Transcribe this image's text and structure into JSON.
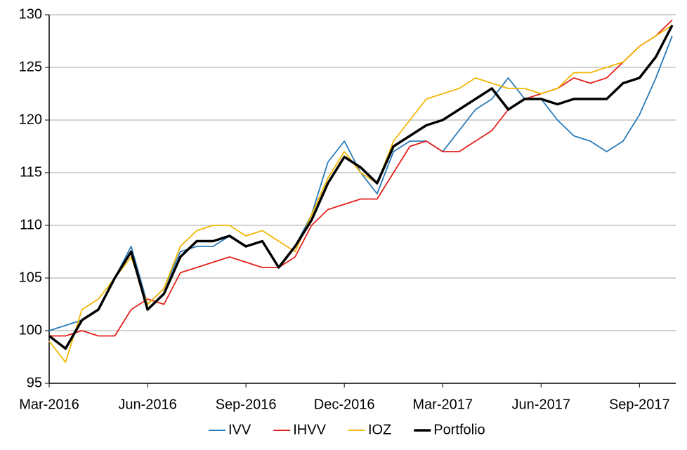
{
  "chart_data": {
    "type": "line",
    "categories": [
      "Mar-2016",
      null,
      null,
      null,
      null,
      null,
      "Jun-2016",
      null,
      null,
      null,
      null,
      null,
      "Sep-2016",
      null,
      null,
      null,
      null,
      null,
      "Dec-2016",
      null,
      null,
      null,
      null,
      null,
      "Mar-2017",
      null,
      null,
      null,
      null,
      null,
      "Jun-2017",
      null,
      null,
      null,
      null,
      null,
      "Sep-2017",
      null,
      null
    ],
    "series": [
      {
        "name": "IVV",
        "color": "#2a7ab8",
        "values": [
          100,
          100.5,
          101,
          102,
          105,
          108,
          102.5,
          104,
          107.5,
          108,
          108,
          109,
          108,
          108.5,
          106,
          108,
          111,
          116,
          118,
          115,
          113,
          117,
          118,
          118,
          117,
          119,
          121,
          122,
          124,
          122,
          122,
          120,
          118.5,
          118,
          117,
          118,
          120.5,
          124,
          128
        ]
      },
      {
        "name": "IHVV",
        "color": "#e3211c",
        "values": [
          99.5,
          99.5,
          100,
          99.5,
          99.5,
          102,
          103,
          102.5,
          105.5,
          106,
          106.5,
          107,
          106.5,
          106,
          106,
          107,
          110,
          111.5,
          112,
          112.5,
          112.5,
          115,
          117.5,
          118,
          117,
          117,
          118,
          119,
          121,
          122,
          122.5,
          123,
          124,
          123.5,
          124,
          125.5,
          127,
          128,
          129.5
        ]
      },
      {
        "name": "IOZ",
        "color": "#f2b705",
        "values": [
          99,
          97,
          102,
          103,
          105,
          107,
          102.5,
          104,
          108,
          109.5,
          110,
          110,
          109,
          109.5,
          108.5,
          107.5,
          111,
          114.5,
          117,
          115,
          114,
          118,
          120,
          122,
          122.5,
          123,
          124,
          123.5,
          123,
          123,
          122.5,
          123,
          124.5,
          124.5,
          125,
          125.5,
          127,
          128,
          129
        ]
      },
      {
        "name": "Portfolio",
        "color": "#000000",
        "values": [
          99.5,
          98.3,
          101,
          102,
          105,
          107.5,
          102,
          103.5,
          107,
          108.5,
          108.5,
          109,
          108,
          108.5,
          106,
          108,
          110.5,
          114,
          116.5,
          115.5,
          114,
          117.5,
          118.5,
          119.5,
          120,
          121,
          122,
          123,
          121,
          122,
          122,
          121.5,
          122,
          122,
          122,
          123.5,
          124,
          126,
          129
        ]
      }
    ],
    "ylim": [
      95,
      130
    ],
    "yticks": [
      95,
      100,
      105,
      110,
      115,
      120,
      125,
      130
    ],
    "grid": true,
    "legend": "bottom"
  }
}
